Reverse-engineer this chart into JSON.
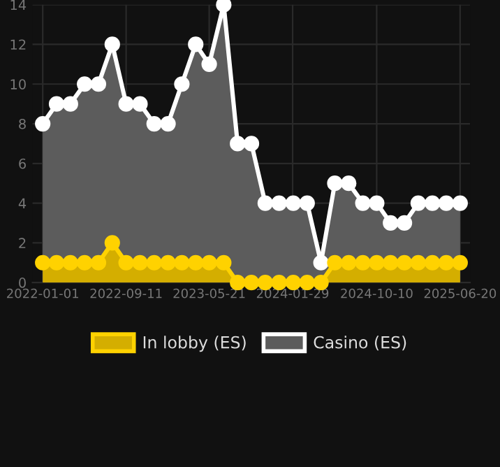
{
  "chart_data": {
    "type": "area",
    "x": [
      "2022-01-01",
      "2022-02-12",
      "2022-03-26",
      "2022-05-08",
      "2022-06-19",
      "2022-07-31",
      "2022-09-11",
      "2022-10-23",
      "2022-12-05",
      "2023-01-16",
      "2023-02-27",
      "2023-04-10",
      "2023-05-21",
      "2023-07-04",
      "2023-08-15",
      "2023-09-26",
      "2023-11-07",
      "2023-12-19",
      "2024-01-31",
      "2024-03-13",
      "2024-04-24",
      "2024-06-05",
      "2024-07-17",
      "2024-08-29",
      "2024-10-10",
      "2024-11-21",
      "2025-01-02",
      "2025-02-13",
      "2025-03-28",
      "2025-05-09",
      "2025-06-20"
    ],
    "series": [
      {
        "name": "In lobby (ES)",
        "color": "#ffd200",
        "values": [
          1,
          1,
          1,
          1,
          1,
          2,
          1,
          1,
          1,
          1,
          1,
          1,
          1,
          1,
          0,
          0,
          0,
          0,
          0,
          0,
          0,
          1,
          1,
          1,
          1,
          1,
          1,
          1,
          1,
          1,
          1
        ]
      },
      {
        "name": "Casino (ES)",
        "color": "#ffffff",
        "values": [
          8,
          9,
          9,
          10,
          10,
          12,
          9,
          9,
          8,
          8,
          10,
          12,
          11,
          14,
          7,
          7,
          4,
          4,
          4,
          4,
          1,
          5,
          5,
          4,
          4,
          3,
          3,
          4,
          4,
          4,
          4
        ]
      }
    ],
    "ylim": [
      0,
      14
    ],
    "yticks": [
      0,
      2,
      4,
      6,
      8,
      10,
      12,
      14
    ],
    "xlim": [
      "2021-12-01",
      "2025-07-20"
    ],
    "xticks": [
      {
        "value": "2022-01-01",
        "label": "2022-01-01"
      },
      {
        "value": "2022-09-11",
        "label": "2022-09-11"
      },
      {
        "value": "2023-05-21",
        "label": "2023-05-21"
      },
      {
        "value": "2024-01-29",
        "label": "2024-01-29"
      },
      {
        "value": "2024-10-10",
        "label": "2024-10-10"
      },
      {
        "value": "2025-06-20",
        "label": "2025-06-20"
      }
    ],
    "grid": true,
    "legend": "bottom",
    "marker": "circle",
    "line_style": "solid"
  }
}
